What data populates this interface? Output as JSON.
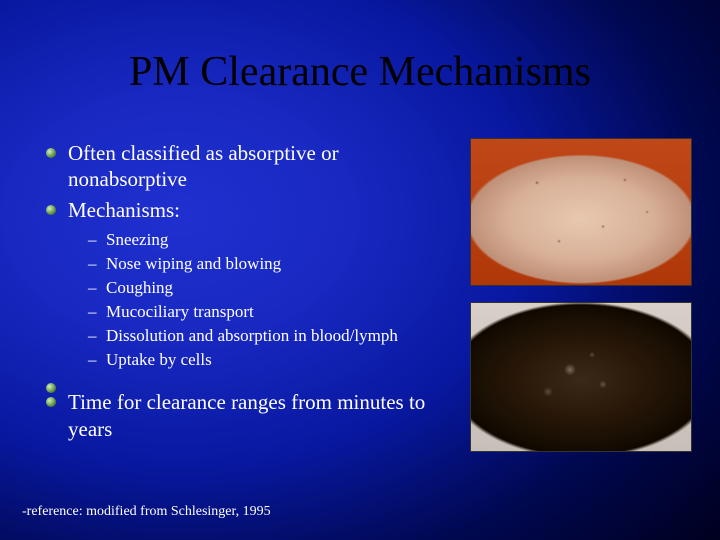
{
  "title": "PM Clearance Mechanisms",
  "bullets": {
    "b1": "Often classified as absorptive or nonabsorptive",
    "b2": "Mechanisms:",
    "sub": {
      "s1": "Sneezing",
      "s2": "Nose wiping and blowing",
      "s3": "Coughing",
      "s4": "Mucociliary transport",
      "s5": "Dissolution and absorption in blood/lymph",
      "s6": "Uptake by cells"
    },
    "b3": "Time for clearance ranges from minutes to years"
  },
  "reference": "-reference: modified from Schlesinger, 1995",
  "images": {
    "top_desc": "healthy-lung-photo",
    "bottom_desc": "diseased-lung-photo"
  }
}
